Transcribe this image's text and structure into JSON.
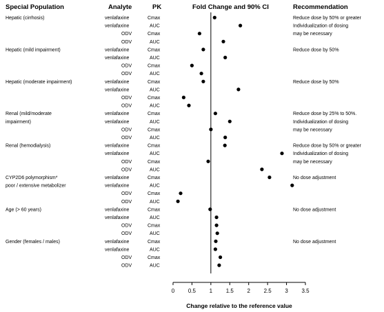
{
  "chart_data": {
    "type": "forest",
    "headers": {
      "population": "Special Population",
      "analyte": "Analyte",
      "pk": "PK",
      "effect": "Fold Change and 90% CI",
      "recommendation": "Recommendation"
    },
    "xlabel": "Change relative to the reference value",
    "xlim": [
      0,
      3.5
    ],
    "xticks": [
      "0",
      "0.5",
      "1",
      "1.5",
      "2",
      "2.5",
      "3",
      "3.5"
    ],
    "reference_line": 1,
    "groups": [
      {
        "population": [
          "Hepatic (cirrhosis)"
        ],
        "recommendation": [
          "Reduce dose by 50% or greater",
          "Individualization of dosing",
          "may be necessary"
        ],
        "rows": [
          {
            "analyte": "venlafaxine",
            "pk": "Cmax",
            "value": 1.1
          },
          {
            "analyte": "venlafaxine",
            "pk": "AUC",
            "value": 1.78
          },
          {
            "analyte": "ODV",
            "pk": "Cmax",
            "value": 0.7
          },
          {
            "analyte": "ODV",
            "pk": "AUC",
            "value": 1.33
          }
        ]
      },
      {
        "population": [
          "Hepatic (mild impairment)"
        ],
        "recommendation": [
          "Reduce dose by 50%"
        ],
        "rows": [
          {
            "analyte": "venlafaxine",
            "pk": "Cmax",
            "value": 0.8
          },
          {
            "analyte": "venlafaxine",
            "pk": "AUC",
            "value": 1.38
          },
          {
            "analyte": "ODV",
            "pk": "Cmax",
            "value": 0.5
          },
          {
            "analyte": "ODV",
            "pk": "AUC",
            "value": 0.75
          }
        ]
      },
      {
        "population": [
          "Hepatic (moderate impairment)"
        ],
        "recommendation": [
          "Reduce dose by 50%"
        ],
        "rows": [
          {
            "analyte": "venlafaxine",
            "pk": "Cmax",
            "value": 0.8
          },
          {
            "analyte": "venlafaxine",
            "pk": "AUC",
            "value": 1.73
          },
          {
            "analyte": "ODV",
            "pk": "Cmax",
            "value": 0.28
          },
          {
            "analyte": "ODV",
            "pk": "AUC",
            "value": 0.42
          }
        ]
      },
      {
        "population": [
          "Renal (mild/moderate",
          "impairment)"
        ],
        "recommendation": [
          "Reduce dose by 25% to 50%.",
          "Individualization of dosing",
          "may be necessary"
        ],
        "rows": [
          {
            "analyte": "venlafaxine",
            "pk": "Cmax",
            "value": 1.12
          },
          {
            "analyte": "venlafaxine",
            "pk": "AUC",
            "value": 1.5
          },
          {
            "analyte": "ODV",
            "pk": "Cmax",
            "value": 1.0
          },
          {
            "analyte": "ODV",
            "pk": "AUC",
            "value": 1.38
          }
        ]
      },
      {
        "population": [
          "Renal (hemodialysis)"
        ],
        "recommendation": [
          "Reduce dose by 50% or greater",
          "Individualization of dosing",
          "may be necessary"
        ],
        "rows": [
          {
            "analyte": "venlafaxine",
            "pk": "Cmax",
            "value": 1.37
          },
          {
            "analyte": "venlafaxine",
            "pk": "AUC",
            "value": 2.88
          },
          {
            "analyte": "ODV",
            "pk": "Cmax",
            "value": 0.93
          },
          {
            "analyte": "ODV",
            "pk": "AUC",
            "value": 2.35
          }
        ]
      },
      {
        "population": [
          "CYP2D6 polymorphism*",
          "poor / extensive metabolizer"
        ],
        "recommendation": [
          "No dose adjustment"
        ],
        "rows": [
          {
            "analyte": "venlafaxine",
            "pk": "Cmax",
            "value": 2.55
          },
          {
            "analyte": "venlafaxine",
            "pk": "AUC",
            "value": 3.15
          },
          {
            "analyte": "ODV",
            "pk": "Cmax",
            "value": 0.2
          },
          {
            "analyte": "ODV",
            "pk": "AUC",
            "value": 0.13
          }
        ]
      },
      {
        "population": [
          "Age (> 60 years)"
        ],
        "recommendation": [
          "No dose adjustment"
        ],
        "rows": [
          {
            "analyte": "venlafaxine",
            "pk": "Cmax",
            "value": 0.98
          },
          {
            "analyte": "venlafaxine",
            "pk": "AUC",
            "value": 1.15
          },
          {
            "analyte": "ODV",
            "pk": "Cmax",
            "value": 1.15
          },
          {
            "analyte": "ODV",
            "pk": "AUC",
            "value": 1.17
          }
        ]
      },
      {
        "population": [
          "Gender (females / males)"
        ],
        "recommendation": [
          "No dose adjustment"
        ],
        "rows": [
          {
            "analyte": "venlafaxine",
            "pk": "Cmax",
            "value": 1.13
          },
          {
            "analyte": "venlafaxine",
            "pk": "AUC",
            "value": 1.12
          },
          {
            "analyte": "ODV",
            "pk": "Cmax",
            "value": 1.25
          },
          {
            "analyte": "ODV",
            "pk": "AUC",
            "value": 1.22
          }
        ]
      }
    ]
  }
}
